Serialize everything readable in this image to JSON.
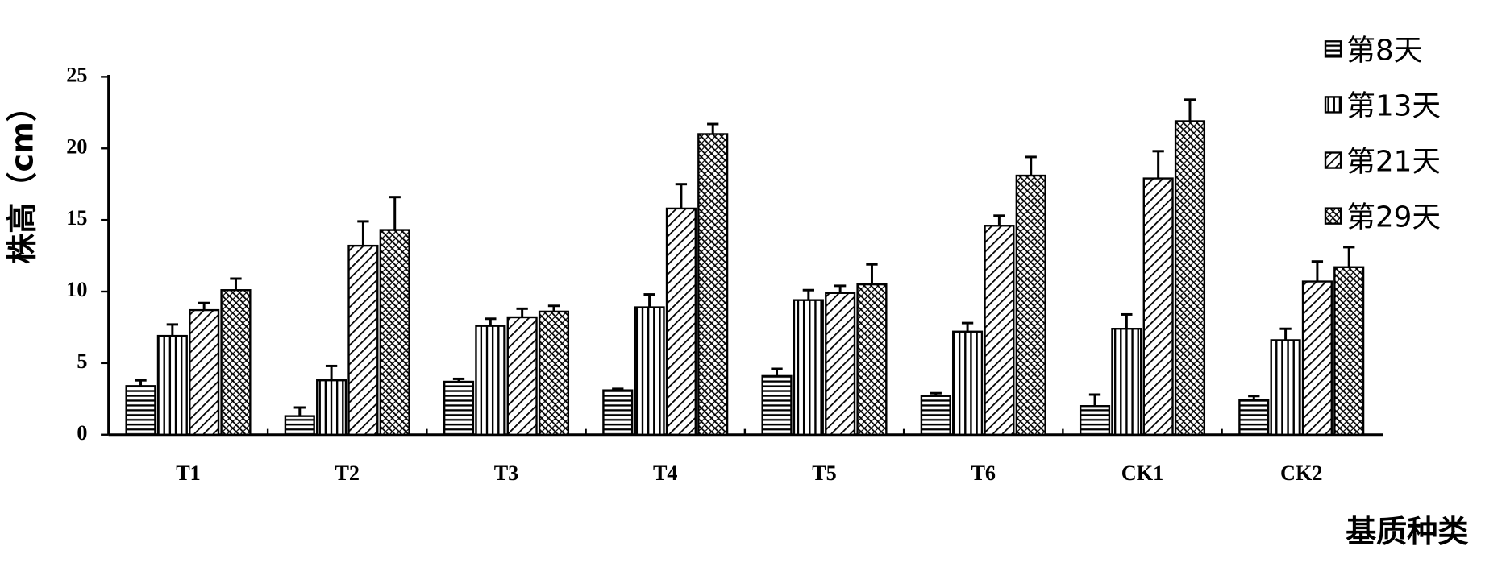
{
  "chart_data": {
    "type": "bar",
    "x_label": "基质种类",
    "y_label": "株高（cm）",
    "categories": [
      "T1",
      "T2",
      "T3",
      "T4",
      "T5",
      "T6",
      "CK1",
      "CK2"
    ],
    "series": [
      {
        "name": "第8天",
        "color": "#000000",
        "pattern": "horizontal",
        "values": [
          3.4,
          1.3,
          3.7,
          3.1,
          4.1,
          2.7,
          2.0,
          2.4
        ],
        "errors": [
          0.4,
          0.6,
          0.2,
          0.1,
          0.5,
          0.2,
          0.8,
          0.3
        ]
      },
      {
        "name": "第13天",
        "color": "#000000",
        "pattern": "vertical",
        "values": [
          6.9,
          3.8,
          7.6,
          8.9,
          9.4,
          7.2,
          7.4,
          6.6
        ],
        "errors": [
          0.8,
          1.0,
          0.5,
          0.9,
          0.7,
          0.6,
          1.0,
          0.8
        ]
      },
      {
        "name": "第21天",
        "color": "#000000",
        "pattern": "diagonal",
        "values": [
          8.7,
          13.2,
          8.2,
          15.8,
          9.9,
          14.6,
          17.9,
          10.7
        ],
        "errors": [
          0.5,
          1.7,
          0.6,
          1.7,
          0.5,
          0.7,
          1.9,
          1.4
        ]
      },
      {
        "name": "第29天",
        "color": "#000000",
        "pattern": "dense",
        "values": [
          10.1,
          14.3,
          8.6,
          21.0,
          10.5,
          18.1,
          21.9,
          11.7
        ],
        "errors": [
          0.8,
          2.3,
          0.4,
          0.7,
          1.4,
          1.3,
          1.5,
          1.4
        ]
      }
    ],
    "ylim": [
      0,
      25
    ],
    "yticks": [
      0,
      5,
      10,
      15,
      20,
      25
    ],
    "grid": false,
    "legend": "top-right"
  }
}
